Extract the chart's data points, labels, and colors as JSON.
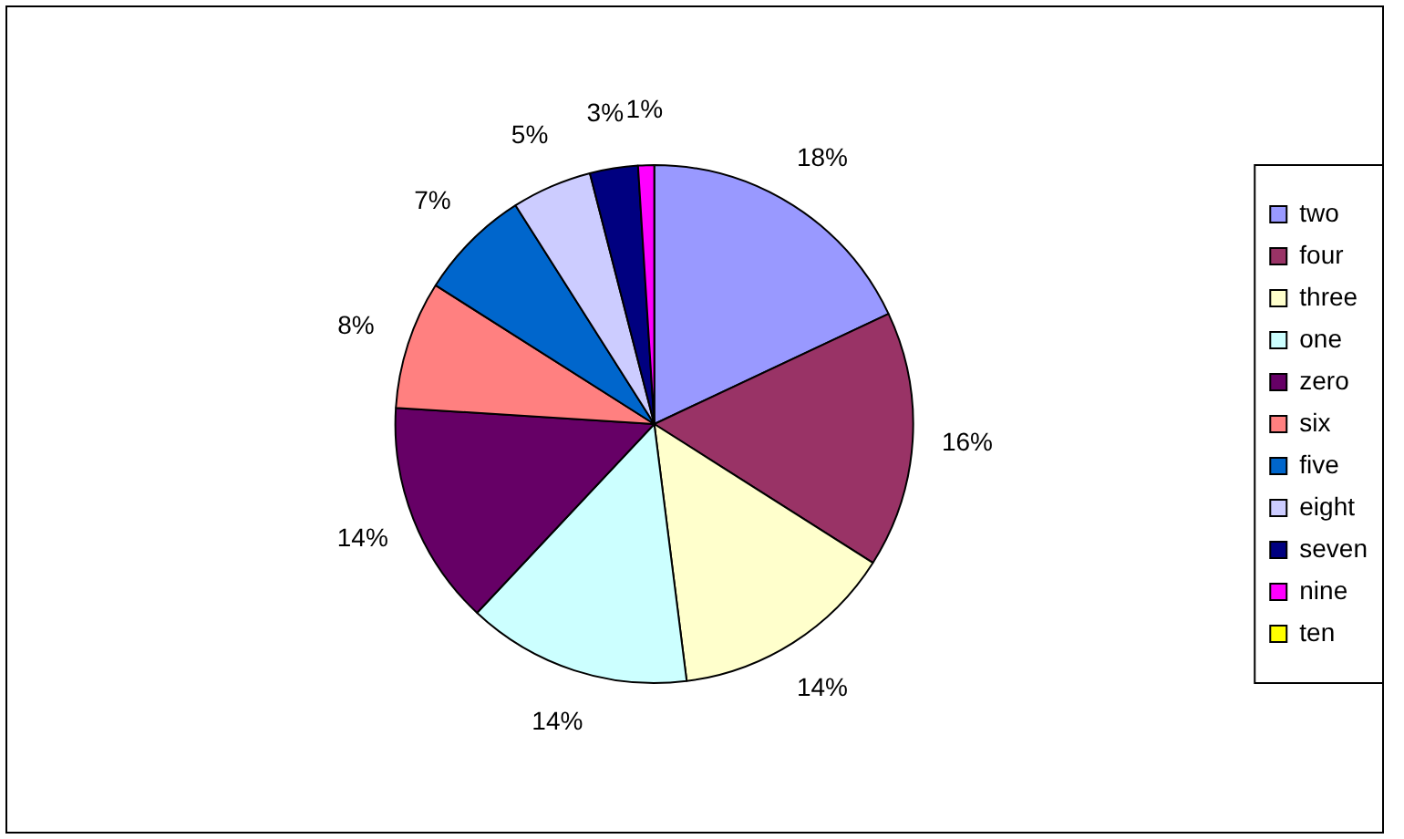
{
  "chart_data": {
    "type": "pie",
    "categories": [
      "two",
      "four",
      "three",
      "one",
      "zero",
      "six",
      "five",
      "eight",
      "seven",
      "nine",
      "ten"
    ],
    "values": [
      18,
      16,
      14,
      14,
      14,
      8,
      7,
      5,
      3,
      1,
      0
    ],
    "value_labels": [
      "18%",
      "16%",
      "14%",
      "14%",
      "14%",
      "8%",
      "7%",
      "5%",
      "3%",
      "1%",
      null
    ],
    "colors": [
      "#9999ff",
      "#993366",
      "#ffffcc",
      "#ccffff",
      "#660066",
      "#ff8080",
      "#0066cc",
      "#ccccff",
      "#000080",
      "#ff00ff",
      "#ffff00"
    ],
    "legend": "right"
  }
}
